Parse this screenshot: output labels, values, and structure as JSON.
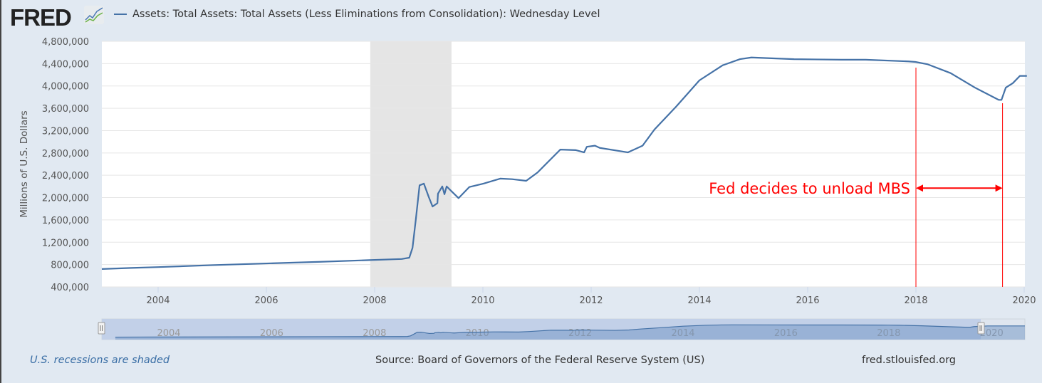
{
  "header": {
    "logo": "FRED",
    "logo_icon": "chart-line-icon",
    "series_title": "Assets: Total Assets: Total Assets (Less Eliminations from Consolidation): Wednesday Level"
  },
  "footer": {
    "recession_note": "U.S. recessions are shaded",
    "source": "Source: Board of Governors of the Federal Reserve System (US)",
    "site": "fred.stlouisfed.org"
  },
  "colors": {
    "series": "#4572a7",
    "recession": "#e5e5e5",
    "annotation": "#ff0000",
    "navigator": "#c2d0e8"
  },
  "chart_data": {
    "type": "line",
    "title": "",
    "ylabel": "Millions of U.S. Dollars",
    "xlabel": "",
    "xlim": [
      2002.96,
      2020.05
    ],
    "ylim": [
      400000,
      4800000
    ],
    "yticks": [
      400000,
      800000,
      1200000,
      1600000,
      2000000,
      2400000,
      2800000,
      3200000,
      3600000,
      4000000,
      4400000,
      4800000
    ],
    "ytick_labels": [
      "400,000",
      "800,000",
      "1,200,000",
      "1,600,000",
      "2,000,000",
      "2,400,000",
      "2,800,000",
      "3,200,000",
      "3,600,000",
      "4,000,000",
      "4,400,000",
      "4,800,000"
    ],
    "xticks": [
      2004,
      2006,
      2008,
      2010,
      2012,
      2014,
      2016,
      2018,
      2020
    ],
    "xtick_labels": [
      "2004",
      "2006",
      "2008",
      "2010",
      "2012",
      "2014",
      "2016",
      "2018",
      "2020"
    ],
    "grid": true,
    "recessions": [
      [
        2007.92,
        2009.42
      ]
    ],
    "series": [
      {
        "name": "Assets: Total Assets: Total Assets (Less Eliminations from Consolidation): Wednesday Level",
        "x": [
          2002.96,
          2003.5,
          2004.0,
          2005.0,
          2006.0,
          2007.0,
          2007.9,
          2008.5,
          2008.64,
          2008.7,
          2008.76,
          2008.83,
          2008.91,
          2009.0,
          2009.07,
          2009.16,
          2009.17,
          2009.25,
          2009.29,
          2009.33,
          2009.55,
          2009.75,
          2010.01,
          2010.32,
          2010.54,
          2010.8,
          2011.01,
          2011.43,
          2011.72,
          2011.87,
          2011.92,
          2012.07,
          2012.16,
          2012.68,
          2012.95,
          2013.17,
          2013.57,
          2014.0,
          2014.43,
          2014.75,
          2014.96,
          2015.75,
          2016.63,
          2017.07,
          2017.86,
          2017.99,
          2018.21,
          2018.64,
          2019.09,
          2019.53,
          2019.58,
          2019.66,
          2019.79,
          2019.92,
          2020.05
        ],
        "y": [
          720000,
          740000,
          755000,
          790000,
          820000,
          850000,
          880000,
          900000,
          923000,
          1100000,
          1600000,
          2220000,
          2250000,
          2010000,
          1840000,
          1900000,
          2070000,
          2200000,
          2060000,
          2200000,
          1990000,
          2190000,
          2250000,
          2340000,
          2330000,
          2300000,
          2450000,
          2860000,
          2850000,
          2810000,
          2910000,
          2930000,
          2890000,
          2810000,
          2930000,
          3220000,
          3630000,
          4100000,
          4370000,
          4480000,
          4510000,
          4480000,
          4470000,
          4470000,
          4440000,
          4430000,
          4390000,
          4230000,
          3970000,
          3750000,
          3750000,
          3970000,
          4050000,
          4180000,
          4180000
        ]
      }
    ],
    "annotations": [
      {
        "text": "Fed decides to unload MBS",
        "from": 2018.0,
        "to": 2019.6,
        "y": 2170000
      }
    ],
    "navigator": {
      "xticks": [
        "2004",
        "2006",
        "2008",
        "2010",
        "2012",
        "2014",
        "2016",
        "2018",
        "2020"
      ]
    }
  }
}
